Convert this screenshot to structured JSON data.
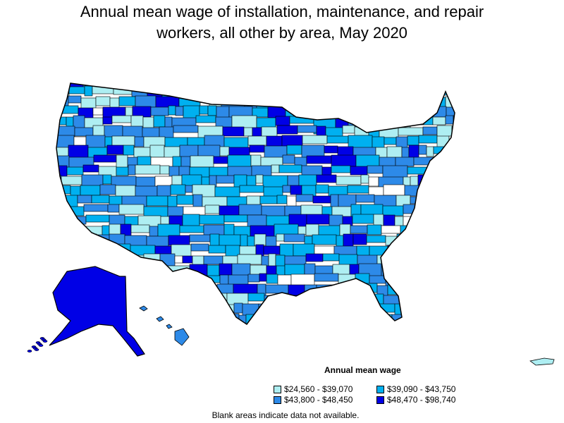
{
  "title": {
    "line1": "Annual mean wage of installation, maintenance, and repair",
    "line2": "workers, all other by area, May 2020"
  },
  "legend": {
    "title": "Annual mean wage",
    "items": [
      {
        "label": "$24,560 - $39,070",
        "color": "#aeeef2"
      },
      {
        "label": "$39,090 - $43,750",
        "color": "#00b0f0"
      },
      {
        "label": "$43,800 - $48,450",
        "color": "#2d8ae8"
      },
      {
        "label": "$48,470 - $98,740",
        "color": "#0000e6"
      }
    ]
  },
  "note": "Blank areas indicate data not available.",
  "palette": {
    "border": "#000000",
    "no_data": "#ffffff"
  }
}
